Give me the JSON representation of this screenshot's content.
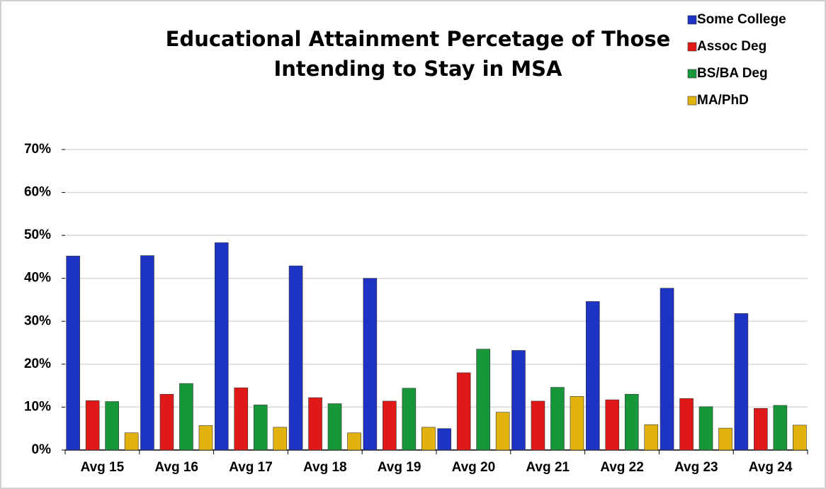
{
  "chart_data": {
    "type": "bar",
    "title": [
      "Educational Attainment Percetage of Those",
      "Intending to Stay in MSA"
    ],
    "categories": [
      "Avg 15",
      "Avg 16",
      "Avg 17",
      "Avg 18",
      "Avg 19",
      "Avg 20",
      "Avg 21",
      "Avg 22",
      "Avg 23",
      "Avg 24"
    ],
    "series": [
      {
        "name": "Some College",
        "color": "#1c33c4",
        "values": [
          45.2,
          45.3,
          48.3,
          42.9,
          40.0,
          5.0,
          23.2,
          34.6,
          37.7,
          31.8
        ]
      },
      {
        "name": "Assoc Deg",
        "color": "#e01818",
        "values": [
          11.5,
          13.0,
          14.5,
          12.2,
          11.4,
          18.0,
          11.4,
          11.7,
          12.0,
          9.7
        ]
      },
      {
        "name": "BS/BA Deg",
        "color": "#17963a",
        "values": [
          11.3,
          15.5,
          10.5,
          10.8,
          14.4,
          23.5,
          14.6,
          13.0,
          10.1,
          10.4
        ]
      },
      {
        "name": "MA/PhD",
        "color": "#e2b30c",
        "values": [
          4.0,
          5.7,
          5.3,
          4.0,
          5.3,
          8.8,
          12.5,
          5.9,
          5.1,
          5.8
        ]
      }
    ],
    "ylim": [
      0,
      70
    ],
    "yticks": [
      {
        "value": 0,
        "label": "0%"
      },
      {
        "value": 10,
        "label": "10%"
      },
      {
        "value": 20,
        "label": "20%"
      },
      {
        "value": 30,
        "label": "30%"
      },
      {
        "value": 40,
        "label": "40%"
      },
      {
        "value": 50,
        "label": "50%"
      },
      {
        "value": 60,
        "label": "60%"
      },
      {
        "value": 70,
        "label": "70%"
      }
    ],
    "grid": true,
    "legend": "top-right"
  }
}
